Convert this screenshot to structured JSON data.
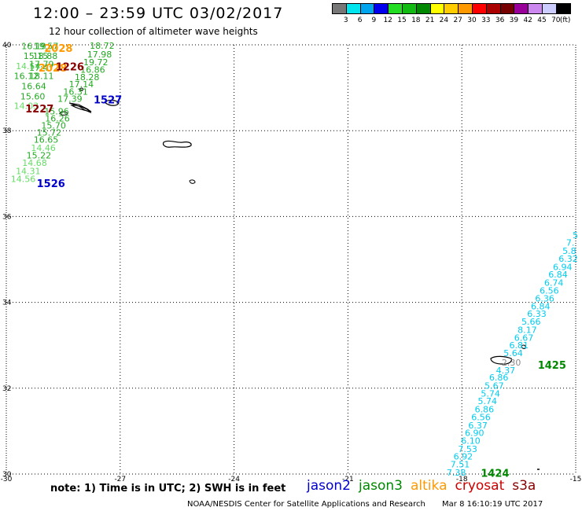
{
  "header": {
    "title": "12:00 – 23:59 UTC 03/02/2017",
    "subtitle": "12 hour collection of altimeter wave heights"
  },
  "colorbar": {
    "unit": "(ft)",
    "bins": [
      {
        "label": "3",
        "color": "#777777"
      },
      {
        "label": "6",
        "color": "#00e5ee"
      },
      {
        "label": "9",
        "color": "#00a5f0"
      },
      {
        "label": "12",
        "color": "#0000ee"
      },
      {
        "label": "15",
        "color": "#22dd22"
      },
      {
        "label": "18",
        "color": "#11bb11"
      },
      {
        "label": "21",
        "color": "#008800"
      },
      {
        "label": "24",
        "color": "#ffff00"
      },
      {
        "label": "27",
        "color": "#ffcc00"
      },
      {
        "label": "30",
        "color": "#ff9900"
      },
      {
        "label": "33",
        "color": "#ff0000"
      },
      {
        "label": "36",
        "color": "#aa0000"
      },
      {
        "label": "39",
        "color": "#770000"
      },
      {
        "label": "42",
        "color": "#990099"
      },
      {
        "label": "45",
        "color": "#cc88ee"
      },
      {
        "label": "70",
        "color": "#ccccff"
      },
      {
        "label": "",
        "color": "#000000"
      }
    ]
  },
  "map": {
    "lon_range": [
      -30,
      -15
    ],
    "lat_range": [
      30,
      40
    ],
    "lon_ticks": [
      "-30",
      "-27",
      "-24",
      "-21",
      "-18",
      "-15"
    ],
    "lon_tick_values": [
      -30,
      -27,
      -24,
      -21,
      -18,
      -15
    ],
    "lat_ticks": [
      "40",
      "38",
      "36",
      "34",
      "32",
      "30"
    ],
    "lat_tick_values": [
      40,
      38,
      36,
      34,
      32,
      30
    ],
    "grid": "dotted"
  },
  "observations": [
    {
      "text": "16.19",
      "lon": -29.6,
      "lat": 39.97,
      "color": "#22aa22"
    },
    {
      "text": "19.57",
      "lon": -29.28,
      "lat": 39.97,
      "color": "#22aa22"
    },
    {
      "text": "18.72",
      "lon": -27.8,
      "lat": 39.98,
      "color": "#22aa22"
    },
    {
      "text": "15.15",
      "lon": -29.55,
      "lat": 39.74,
      "color": "#22aa22"
    },
    {
      "text": "18.88",
      "lon": -29.3,
      "lat": 39.74,
      "color": "#22aa22"
    },
    {
      "text": "17.98",
      "lon": -27.87,
      "lat": 39.78,
      "color": "#22aa22"
    },
    {
      "text": "14.54",
      "lon": -29.75,
      "lat": 39.51,
      "color": "#66dd66"
    },
    {
      "text": "17.79",
      "lon": -29.4,
      "lat": 39.55,
      "color": "#22aa22"
    },
    {
      "text": "19.72",
      "lon": -27.97,
      "lat": 39.6,
      "color": "#22aa22"
    },
    {
      "text": "17.47",
      "lon": -29.4,
      "lat": 39.47,
      "color": "#22aa22"
    },
    {
      "text": "16.86",
      "lon": -28.05,
      "lat": 39.42,
      "color": "#22aa22"
    },
    {
      "text": "16.12",
      "lon": -29.8,
      "lat": 39.28,
      "color": "#22aa22"
    },
    {
      "text": "18.11",
      "lon": -29.4,
      "lat": 39.28,
      "color": "#22aa22"
    },
    {
      "text": "18.28",
      "lon": -28.2,
      "lat": 39.25,
      "color": "#22aa22"
    },
    {
      "text": "16.64",
      "lon": -29.6,
      "lat": 39.04,
      "color": "#22aa22"
    },
    {
      "text": "17.14",
      "lon": -28.35,
      "lat": 39.08,
      "color": "#22aa22"
    },
    {
      "text": "16.31",
      "lon": -28.5,
      "lat": 38.91,
      "color": "#22aa22"
    },
    {
      "text": "15.60",
      "lon": -29.63,
      "lat": 38.8,
      "color": "#22aa22"
    },
    {
      "text": "17.39",
      "lon": -28.65,
      "lat": 38.75,
      "color": "#22aa22"
    },
    {
      "text": "14.03",
      "lon": -29.8,
      "lat": 38.58,
      "color": "#66dd66"
    },
    {
      "text": "15.96",
      "lon": -29.0,
      "lat": 38.45,
      "color": "#22aa22"
    },
    {
      "text": "16.26",
      "lon": -28.98,
      "lat": 38.29,
      "color": "#22aa22"
    },
    {
      "text": "15.70",
      "lon": -29.08,
      "lat": 38.12,
      "color": "#22aa22"
    },
    {
      "text": "15.72",
      "lon": -29.2,
      "lat": 37.96,
      "color": "#22aa22"
    },
    {
      "text": "16.65",
      "lon": -29.28,
      "lat": 37.79,
      "color": "#22aa22"
    },
    {
      "text": "14.46",
      "lon": -29.35,
      "lat": 37.6,
      "color": "#66dd66"
    },
    {
      "text": "15.22",
      "lon": -29.47,
      "lat": 37.43,
      "color": "#22aa22"
    },
    {
      "text": "14.68",
      "lon": -29.58,
      "lat": 37.25,
      "color": "#66dd66"
    },
    {
      "text": "14.31",
      "lon": -29.75,
      "lat": 37.06,
      "color": "#66dd66"
    },
    {
      "text": "14.56",
      "lon": -29.88,
      "lat": 36.88,
      "color": "#66dd66"
    },
    {
      "text": "5",
      "lon": -15.08,
      "lat": 35.57,
      "color": "#00ccee"
    },
    {
      "text": "7.",
      "lon": -15.25,
      "lat": 35.39,
      "color": "#00ccee"
    },
    {
      "text": "5.8",
      "lon": -15.35,
      "lat": 35.2,
      "color": "#00ccee"
    },
    {
      "text": "6.32",
      "lon": -15.45,
      "lat": 35.02,
      "color": "#00ccee"
    },
    {
      "text": "6.94",
      "lon": -15.6,
      "lat": 34.83,
      "color": "#00ccee"
    },
    {
      "text": "6.84",
      "lon": -15.72,
      "lat": 34.65,
      "color": "#00ccee"
    },
    {
      "text": "6.74",
      "lon": -15.83,
      "lat": 34.46,
      "color": "#00ccee"
    },
    {
      "text": "6.56",
      "lon": -15.95,
      "lat": 34.28,
      "color": "#00ccee"
    },
    {
      "text": "6.36",
      "lon": -16.07,
      "lat": 34.09,
      "color": "#00ccee"
    },
    {
      "text": "6.84",
      "lon": -16.18,
      "lat": 33.91,
      "color": "#00ccee"
    },
    {
      "text": "6.33",
      "lon": -16.28,
      "lat": 33.74,
      "color": "#00ccee"
    },
    {
      "text": "5.66",
      "lon": -16.43,
      "lat": 33.55,
      "color": "#00ccee"
    },
    {
      "text": "8.17",
      "lon": -16.53,
      "lat": 33.36,
      "color": "#00ccee"
    },
    {
      "text": "6.67",
      "lon": -16.62,
      "lat": 33.18,
      "color": "#00ccee"
    },
    {
      "text": "6.81",
      "lon": -16.75,
      "lat": 33.0,
      "color": "#00ccee"
    },
    {
      "text": "5.64",
      "lon": -16.9,
      "lat": 32.82,
      "color": "#00ccee"
    },
    {
      "text": "2.30",
      "lon": -16.95,
      "lat": 32.6,
      "color": "#888888"
    },
    {
      "text": "4.37",
      "lon": -17.1,
      "lat": 32.42,
      "color": "#00ccee"
    },
    {
      "text": "6.86",
      "lon": -17.28,
      "lat": 32.25,
      "color": "#00ccee"
    },
    {
      "text": "5.67",
      "lon": -17.4,
      "lat": 32.06,
      "color": "#00ccee"
    },
    {
      "text": "5.74",
      "lon": -17.5,
      "lat": 31.88,
      "color": "#00ccee"
    },
    {
      "text": "5.74",
      "lon": -17.58,
      "lat": 31.7,
      "color": "#00ccee"
    },
    {
      "text": "6.86",
      "lon": -17.66,
      "lat": 31.51,
      "color": "#00ccee"
    },
    {
      "text": "6.56",
      "lon": -17.75,
      "lat": 31.33,
      "color": "#00ccee"
    },
    {
      "text": "6.37",
      "lon": -17.83,
      "lat": 31.14,
      "color": "#00ccee"
    },
    {
      "text": "6.90",
      "lon": -17.92,
      "lat": 30.96,
      "color": "#00ccee"
    },
    {
      "text": "6.10",
      "lon": -18.02,
      "lat": 30.78,
      "color": "#00ccee"
    },
    {
      "text": "7.53",
      "lon": -18.1,
      "lat": 30.59,
      "color": "#00ccee"
    },
    {
      "text": "6.92",
      "lon": -18.22,
      "lat": 30.41,
      "color": "#00ccee"
    },
    {
      "text": "7.51",
      "lon": -18.3,
      "lat": 30.23,
      "color": "#00ccee"
    },
    {
      "text": "7.38",
      "lon": -18.4,
      "lat": 30.04,
      "color": "#00ccee"
    }
  ],
  "pass_labels": [
    {
      "text": "2028",
      "lon": -29.0,
      "lat": 39.93,
      "color": "#ff9900"
    },
    {
      "text": "2028",
      "lon": -29.15,
      "lat": 39.47,
      "color": "#ff9900"
    },
    {
      "text": "1226",
      "lon": -28.7,
      "lat": 39.5,
      "color": "#880000"
    },
    {
      "text": "1227",
      "lon": -29.5,
      "lat": 38.52,
      "color": "#880000"
    },
    {
      "text": "1527",
      "lon": -27.7,
      "lat": 38.73,
      "color": "#0000cc"
    },
    {
      "text": "1526",
      "lon": -29.2,
      "lat": 36.78,
      "color": "#0000cc"
    },
    {
      "text": "1425",
      "lon": -16.0,
      "lat": 32.55,
      "color": "#008800"
    },
    {
      "text": "1424",
      "lon": -17.5,
      "lat": 30.03,
      "color": "#008800"
    }
  ],
  "note": "note: 1) Time is in UTC; 2) SWH is in feet",
  "legend": [
    {
      "name": "jason2",
      "color": "#0000cc"
    },
    {
      "name": "jason3",
      "color": "#008800"
    },
    {
      "name": "altika",
      "color": "#ff9900"
    },
    {
      "name": "cryosat",
      "color": "#cc0000"
    },
    {
      "name": "s3a",
      "color": "#880000"
    }
  ],
  "credit": {
    "agency": "NOAA/NESDIS Center for Satellite Applications and Research",
    "timestamp": "Mar  8 16:10:19 UTC 2017"
  }
}
